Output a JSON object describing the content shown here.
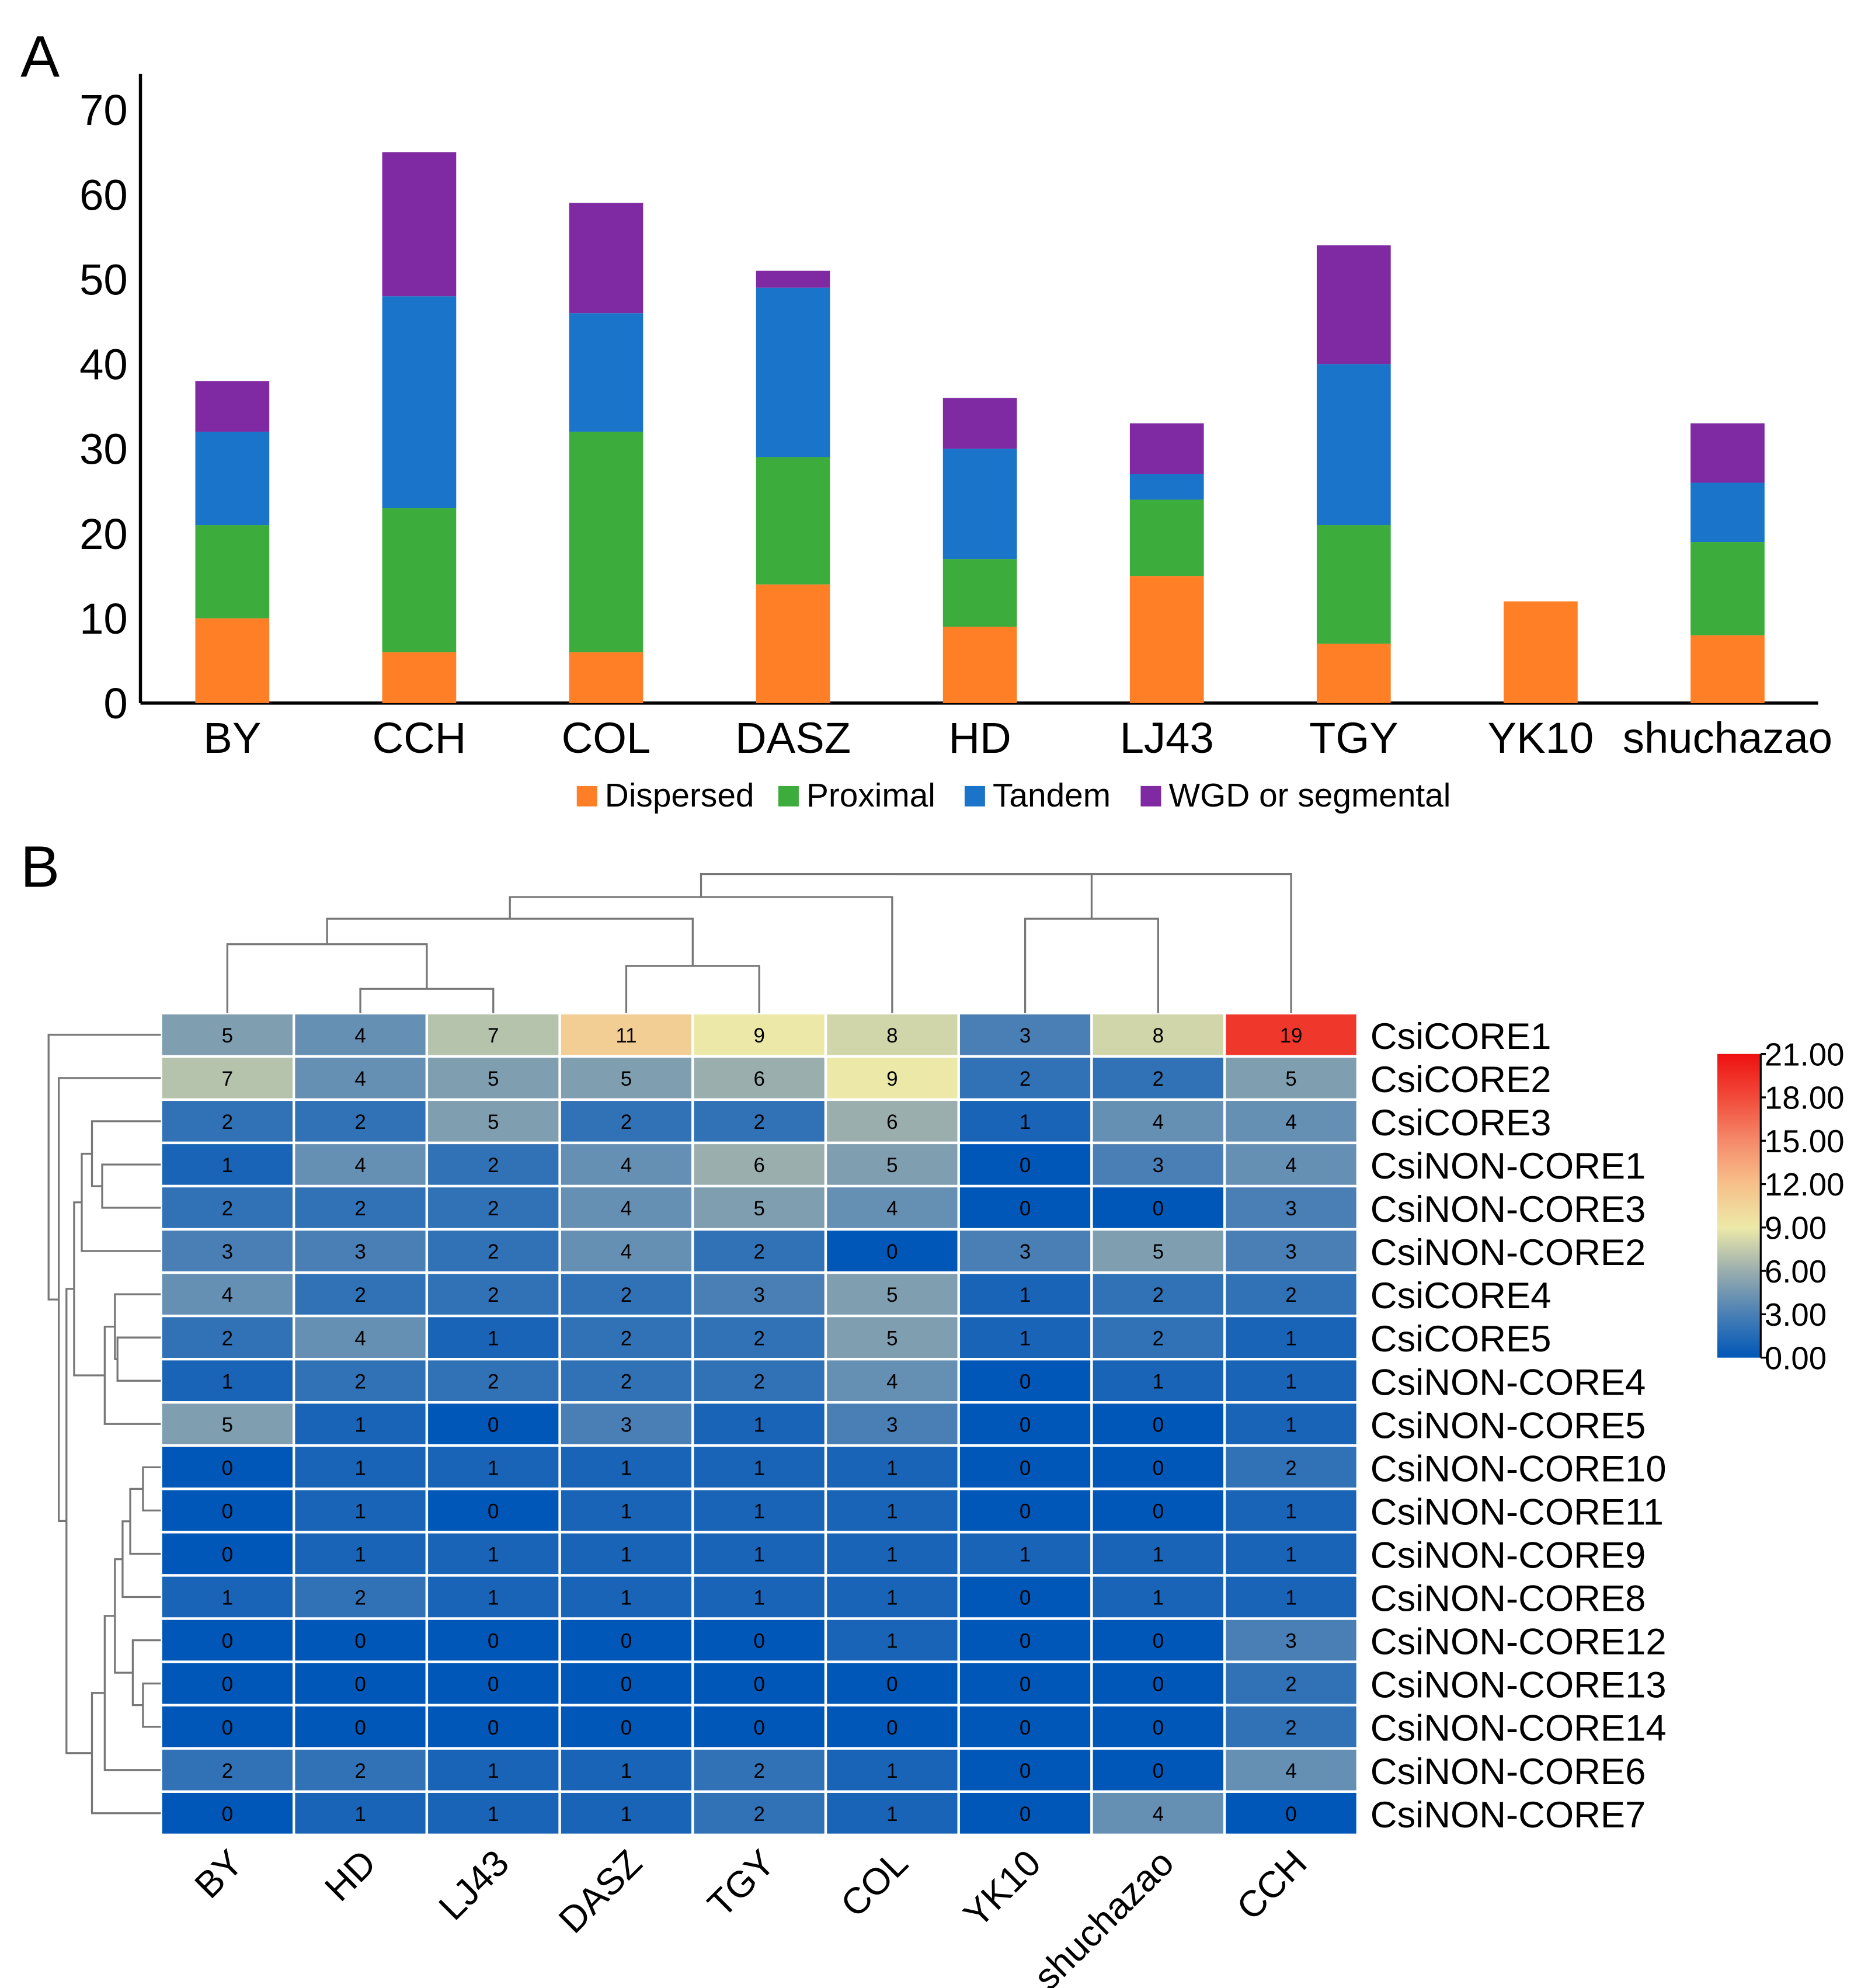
{
  "panels": {
    "a": "A",
    "b": "B"
  },
  "chart_data": [
    {
      "type": "bar",
      "stacked": true,
      "title": "",
      "categories": [
        "BY",
        "CCH",
        "COL",
        "DASZ",
        "HD",
        "LJ43",
        "TGY",
        "YK10",
        "shuchazao"
      ],
      "series": [
        {
          "name": "Dispersed",
          "color": "#ff7f27",
          "values": [
            10,
            6,
            6,
            14,
            9,
            15,
            7,
            12,
            8
          ]
        },
        {
          "name": "Proximal",
          "color": "#3cac3c",
          "values": [
            11,
            17,
            26,
            15,
            8,
            9,
            14,
            0,
            11
          ]
        },
        {
          "name": "Tandem",
          "color": "#1a74c9",
          "values": [
            11,
            25,
            14,
            20,
            13,
            3,
            19,
            0,
            7
          ]
        },
        {
          "name": "WGD or segmental",
          "color": "#7f2aa3",
          "values": [
            6,
            17,
            13,
            2,
            6,
            6,
            14,
            0,
            7
          ]
        }
      ],
      "yticks": [
        "0",
        "10",
        "20",
        "30",
        "40",
        "50",
        "60",
        "70"
      ],
      "ylim": [
        0,
        70
      ],
      "legend": "bottom"
    },
    {
      "type": "heatmap",
      "columns": [
        "BY",
        "HD",
        "LJ43",
        "DASZ",
        "TGY",
        "COL",
        "YK10",
        "shuchazao",
        "CCH"
      ],
      "rows": [
        "CsiCORE1",
        "CsiCORE2",
        "CsiCORE3",
        "CsiNON-CORE1",
        "CsiNON-CORE3",
        "CsiNON-CORE2",
        "CsiCORE4",
        "CsiCORE5",
        "CsiNON-CORE4",
        "CsiNON-CORE5",
        "CsiNON-CORE10",
        "CsiNON-CORE11",
        "CsiNON-CORE9",
        "CsiNON-CORE8",
        "CsiNON-CORE12",
        "CsiNON-CORE13",
        "CsiNON-CORE14",
        "CsiNON-CORE6",
        "CsiNON-CORE7"
      ],
      "values": [
        [
          5,
          4,
          7,
          11,
          9,
          8,
          3,
          8,
          19
        ],
        [
          7,
          4,
          5,
          5,
          6,
          9,
          2,
          2,
          5
        ],
        [
          2,
          2,
          5,
          2,
          2,
          6,
          1,
          4,
          4
        ],
        [
          1,
          4,
          2,
          4,
          6,
          5,
          0,
          3,
          4
        ],
        [
          2,
          2,
          2,
          4,
          5,
          4,
          0,
          0,
          3
        ],
        [
          3,
          3,
          2,
          4,
          2,
          0,
          3,
          5,
          3
        ],
        [
          4,
          2,
          2,
          2,
          3,
          5,
          1,
          2,
          2
        ],
        [
          2,
          4,
          1,
          2,
          2,
          5,
          1,
          2,
          1
        ],
        [
          1,
          2,
          2,
          2,
          2,
          4,
          0,
          1,
          1
        ],
        [
          5,
          1,
          0,
          3,
          1,
          3,
          0,
          0,
          1
        ],
        [
          0,
          1,
          1,
          1,
          1,
          1,
          0,
          0,
          2
        ],
        [
          0,
          1,
          0,
          1,
          1,
          1,
          0,
          0,
          1
        ],
        [
          0,
          1,
          1,
          1,
          1,
          1,
          1,
          1,
          1
        ],
        [
          1,
          2,
          1,
          1,
          1,
          1,
          0,
          1,
          1
        ],
        [
          0,
          0,
          0,
          0,
          0,
          1,
          0,
          0,
          3
        ],
        [
          0,
          0,
          0,
          0,
          0,
          0,
          0,
          0,
          2
        ],
        [
          0,
          0,
          0,
          0,
          0,
          0,
          0,
          0,
          2
        ],
        [
          2,
          2,
          1,
          1,
          2,
          1,
          0,
          0,
          4
        ],
        [
          0,
          1,
          1,
          1,
          2,
          1,
          0,
          4,
          0
        ]
      ],
      "colorbar": {
        "range": [
          0,
          21
        ],
        "ticks": [
          "21.00",
          "18.00",
          "15.00",
          "12.00",
          "9.00",
          "6.00",
          "3.00",
          "0.00"
        ],
        "stops": [
          "#0057b7",
          "#4a7fb5",
          "#9aaeae",
          "#ece9a8",
          "#f7c08a",
          "#f58a6a",
          "#f14a3a",
          "#ee1111"
        ]
      }
    }
  ]
}
